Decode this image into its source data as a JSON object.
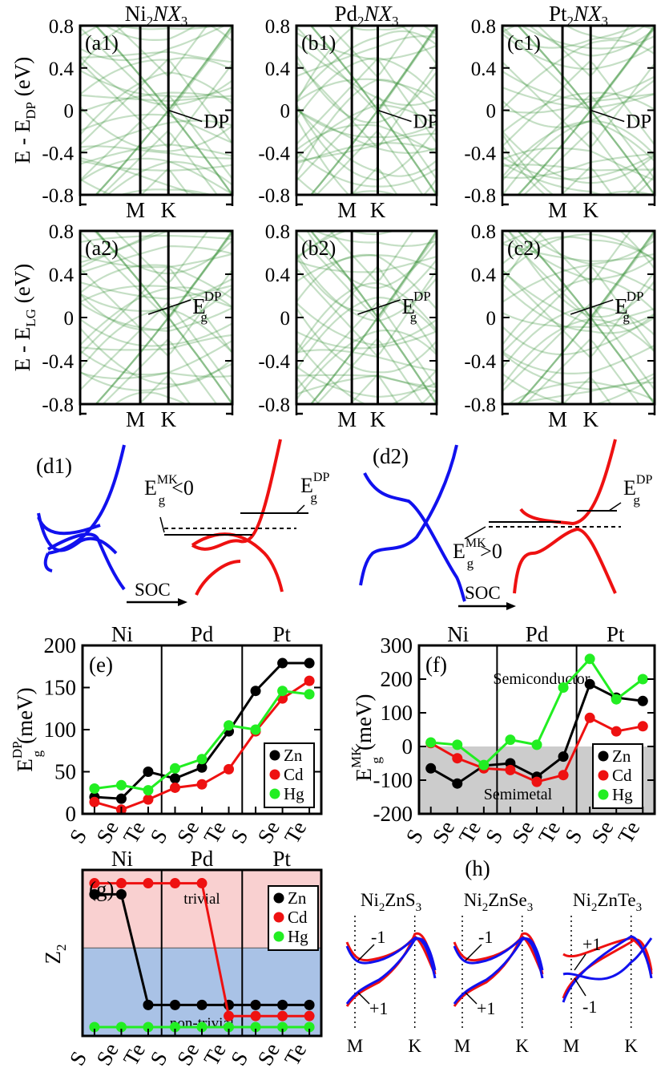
{
  "colors": {
    "band": "#2e8b2e",
    "zn": "#000000",
    "cd": "#ee1111",
    "hg": "#22ee22",
    "blue": "#1111ee",
    "red": "#ee1111",
    "trivial_bg": "#f9d0d0",
    "nontrivial_bg": "#a9c2e6",
    "semimetal_bg": "#cccccc"
  },
  "band_panels": {
    "titles": [
      "Ni",
      "2",
      "NX",
      "3",
      "Pd",
      "2",
      "NX",
      "3",
      "Pt",
      "2",
      "NX",
      "3"
    ],
    "row1": {
      "labels": [
        "(a1)",
        "(b1)",
        "(c1)"
      ],
      "marker": "DP",
      "ylabel_main": "E - E",
      "ylabel_sub": "DP",
      "ylabel_unit": " (eV)"
    },
    "row2": {
      "labels": [
        "(a2)",
        "(b2)",
        "(c2)"
      ],
      "marker_main": "E",
      "marker_sub": "g",
      "marker_sup": "DP",
      "ylabel_main": "E - E",
      "ylabel_sub": "LG",
      "ylabel_unit": " (eV)"
    },
    "yticks": [
      "0.8",
      "0.4",
      "0",
      "-0.4",
      "-0.8"
    ],
    "xticks": [
      "M",
      "K"
    ]
  },
  "schematic": {
    "d1": {
      "label": "(d1)",
      "egmk_sign": "<0",
      "soc": "SOC"
    },
    "d2": {
      "label": "(d2)",
      "egmk_sign": ">0",
      "soc": "SOC"
    },
    "E": "E",
    "g": "g",
    "MK": "MK",
    "DP": "DP"
  },
  "chart_data": [
    {
      "panel": "(e)",
      "type": "line",
      "categories": [
        "S",
        "Se",
        "Te",
        "S",
        "Se",
        "Te",
        "S",
        "Se",
        "Te"
      ],
      "groups": [
        "Ni",
        "Pd",
        "Pt"
      ],
      "ylabel": "E_g^DP (meV)",
      "ylim": [
        0,
        200
      ],
      "yticks": [
        0,
        50,
        100,
        150,
        200
      ],
      "series": [
        {
          "name": "Zn",
          "values": [
            20,
            18,
            50,
            42,
            55,
            98,
            146,
            179,
            179
          ]
        },
        {
          "name": "Cd",
          "values": [
            14,
            5,
            17,
            31,
            35,
            53,
            98,
            137,
            158
          ]
        },
        {
          "name": "Hg",
          "values": [
            30,
            34,
            28,
            54,
            65,
            105,
            100,
            146,
            142
          ]
        }
      ]
    },
    {
      "panel": "(f)",
      "type": "line",
      "categories": [
        "S",
        "Se",
        "Te",
        "S",
        "Se",
        "Te",
        "S",
        "Se",
        "Te"
      ],
      "groups": [
        "Ni",
        "Pd",
        "Pt"
      ],
      "ylabel": "E_g^MK (meV)",
      "ylim": [
        -200,
        300
      ],
      "yticks": [
        -200,
        -100,
        0,
        100,
        200,
        300
      ],
      "annotations": [
        "Semiconductor",
        "Semimetal"
      ],
      "series": [
        {
          "name": "Zn",
          "values": [
            -65,
            -110,
            -57,
            -50,
            -90,
            -30,
            185,
            145,
            135
          ]
        },
        {
          "name": "Cd",
          "values": [
            10,
            -35,
            -65,
            -70,
            -105,
            -85,
            85,
            45,
            60
          ]
        },
        {
          "name": "Hg",
          "values": [
            12,
            5,
            -55,
            20,
            5,
            175,
            260,
            140,
            200
          ]
        }
      ]
    },
    {
      "panel": "(g)",
      "type": "line",
      "categories": [
        "S",
        "Se",
        "Te",
        "S",
        "Se",
        "Te",
        "S",
        "Se",
        "Te"
      ],
      "groups": [
        "Ni",
        "Pd",
        "Pt"
      ],
      "ylabel": "Z2",
      "annotations": [
        "trivial",
        "non-trivial"
      ],
      "series": [
        {
          "name": "Zn",
          "values": [
            1.28,
            1.28,
            0.28,
            0.28,
            0.28,
            0.28,
            0.28,
            0.28,
            0.28
          ]
        },
        {
          "name": "Cd",
          "values": [
            1.38,
            1.38,
            1.38,
            1.38,
            1.38,
            0.18,
            0.18,
            0.18,
            0.18
          ]
        },
        {
          "name": "Hg",
          "values": [
            0.08,
            0.08,
            0.08,
            0.08,
            0.08,
            0.08,
            0.08,
            0.08,
            0.08
          ]
        }
      ]
    }
  ],
  "legend": [
    "Zn",
    "Cd",
    "Hg"
  ],
  "panel_h": {
    "label": "(h)",
    "titles": [
      {
        "main": "Ni",
        "sub": "2",
        "rest": "ZnS",
        "sub2": "3"
      },
      {
        "main": "Ni",
        "sub": "2",
        "rest": "ZnSe",
        "sub2": "3"
      },
      {
        "main": "Ni",
        "sub": "2",
        "rest": "ZnTe",
        "sub2": "3"
      }
    ],
    "markers": [
      [
        "-1",
        "+1"
      ],
      [
        "-1",
        "+1"
      ],
      [
        "+1",
        "-1"
      ]
    ],
    "xticks": [
      "M",
      "K"
    ]
  }
}
